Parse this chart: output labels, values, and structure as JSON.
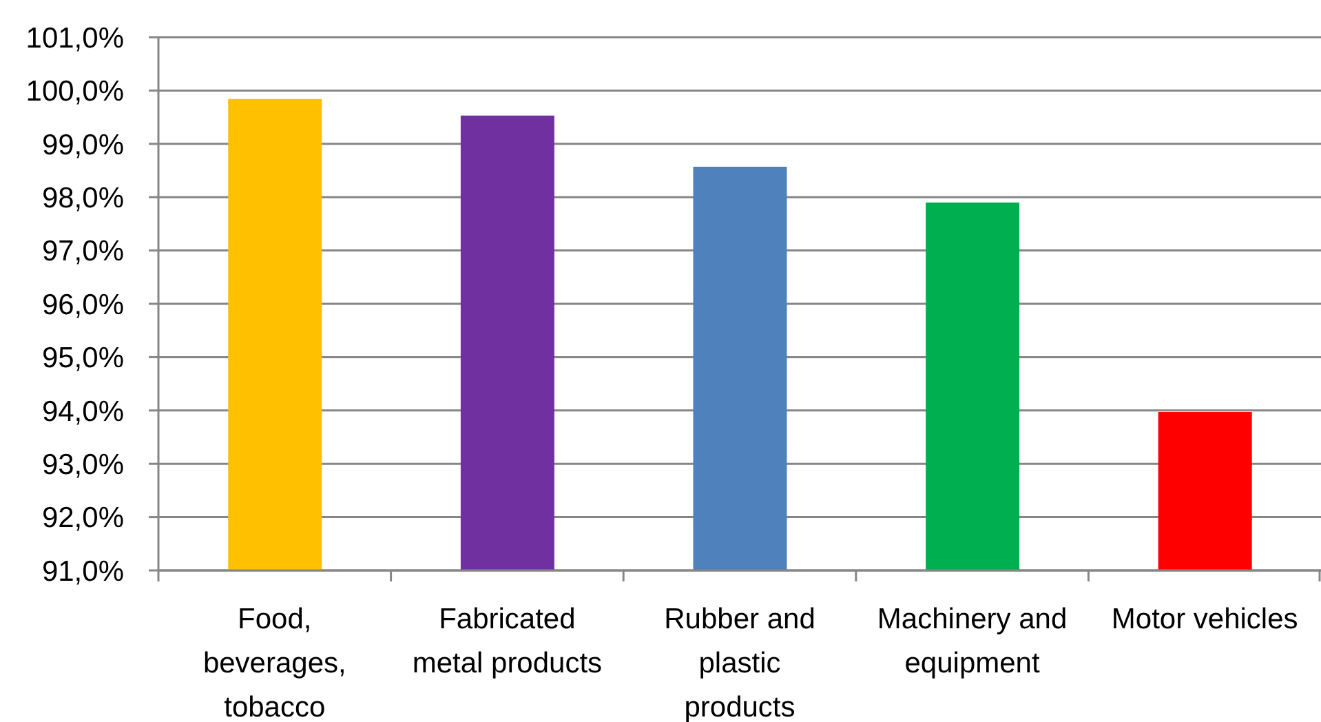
{
  "chart_data": {
    "type": "bar",
    "categories": [
      "Food, beverages, tobacco",
      "Fabricated metal products",
      "Rubber and plastic products",
      "Machinery and equipment",
      "Motor vehicles"
    ],
    "values": [
      99.84,
      99.53,
      98.57,
      97.9,
      93.97
    ],
    "colors": [
      "#ffc000",
      "#7030a0",
      "#4f81bd",
      "#00b050",
      "#ff0000"
    ],
    "ylim": [
      91,
      101
    ],
    "yticks": [
      {
        "value": 91,
        "label": "91,0%"
      },
      {
        "value": 92,
        "label": "92,0%"
      },
      {
        "value": 93,
        "label": "93,0%"
      },
      {
        "value": 94,
        "label": "94,0%"
      },
      {
        "value": 95,
        "label": "95,0%"
      },
      {
        "value": 96,
        "label": "96,0%"
      },
      {
        "value": 97,
        "label": "97,0%"
      },
      {
        "value": 98,
        "label": "98,0%"
      },
      {
        "value": 99,
        "label": "99,0%"
      },
      {
        "value": 100,
        "label": "100,0%"
      },
      {
        "value": 101,
        "label": "101,0%"
      }
    ],
    "grid": "y"
  }
}
